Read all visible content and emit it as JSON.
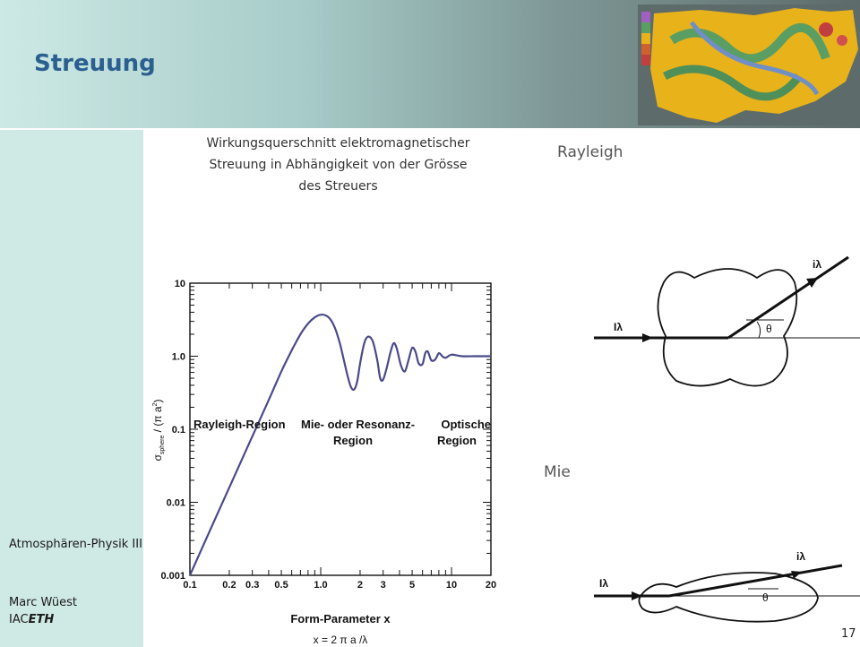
{
  "slide": {
    "title": "Streuung",
    "chart_caption": "Wirkungsquerschnitt elektromagnetischer Streuung in Abhängigkeit von der Grösse des Streuers",
    "right_label_rayleigh": "Rayleigh",
    "right_label_mie": "Mie",
    "course": "Atmosphären-Physik III",
    "author": "Marc Wüest",
    "institution_prefix": "IAC",
    "institution_eth": "ETH",
    "page_number": "17"
  },
  "diagrams": {
    "rayleigh": {
      "incident": "Iλ",
      "scattered": "iλ",
      "angle": "θ"
    },
    "mie": {
      "incident": "Iλ",
      "scattered": "iλ",
      "angle": "θ"
    }
  },
  "chart_data": {
    "type": "line",
    "xscale": "log",
    "yscale": "log",
    "xlim": [
      0.1,
      20
    ],
    "ylim": [
      0.001,
      10
    ],
    "x_ticks": [
      "0.1",
      "0.2",
      "0.3",
      "0.5",
      "1.0",
      "2",
      "3",
      "5",
      "10",
      "20"
    ],
    "y_ticks": [
      "0.001",
      "0.01",
      "0.1",
      "1.0",
      "10"
    ],
    "xlabel": "Form-Parameter x",
    "xlabel_formula": "x = 2 π a /λ",
    "ylabel": "σsphere / (π a²)",
    "ylabel_symbol": "σ",
    "ylabel_sub": "sphere",
    "ylabel_rest": " / (π a",
    "ylabel_sup": "2",
    "ylabel_close": ")",
    "annotations": {
      "rayleigh_region": "Rayleigh-Region",
      "mie_region_1": "Mie- oder Resonanz-",
      "mie_region_2": "Region",
      "optical_region_1": "Optische",
      "optical_region_2": "Region"
    },
    "series": [
      {
        "color": "#4a4a8a",
        "x": [
          0.1,
          0.2,
          0.3,
          0.4,
          0.5,
          0.6,
          0.7,
          0.8,
          0.9,
          1.0,
          1.1,
          1.2,
          1.3,
          1.4,
          1.5,
          1.6,
          1.7,
          1.8,
          1.9,
          2.0,
          2.15,
          2.3,
          2.5,
          2.7,
          2.85,
          3.0,
          3.2,
          3.4,
          3.6,
          3.8,
          4.1,
          4.4,
          4.7,
          5.0,
          5.3,
          5.6,
          6.0,
          6.3,
          6.6,
          7.0,
          7.5,
          8.0,
          8.5,
          9.0,
          10.0,
          12,
          15,
          20
        ],
        "y": [
          0.001,
          0.016,
          0.08,
          0.25,
          0.62,
          1.2,
          2.0,
          2.8,
          3.4,
          3.7,
          3.6,
          3.1,
          2.3,
          1.5,
          0.9,
          0.55,
          0.38,
          0.35,
          0.45,
          0.8,
          1.5,
          1.85,
          1.6,
          0.9,
          0.5,
          0.48,
          0.7,
          1.1,
          1.5,
          1.3,
          0.75,
          0.62,
          0.9,
          1.3,
          1.15,
          0.8,
          0.78,
          1.1,
          1.15,
          0.88,
          0.9,
          1.1,
          1.0,
          0.95,
          1.05,
          1.0,
          1.0,
          1.0
        ]
      }
    ]
  }
}
